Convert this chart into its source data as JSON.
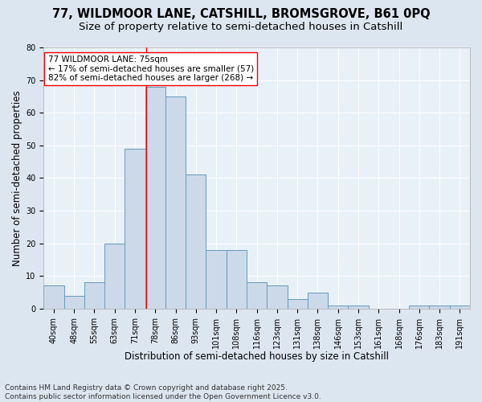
{
  "title_line1": "77, WILDMOOR LANE, CATSHILL, BROMSGROVE, B61 0PQ",
  "title_line2": "Size of property relative to semi-detached houses in Catshill",
  "xlabel": "Distribution of semi-detached houses by size in Catshill",
  "ylabel": "Number of semi-detached properties",
  "categories": [
    "40sqm",
    "48sqm",
    "55sqm",
    "63sqm",
    "71sqm",
    "78sqm",
    "86sqm",
    "93sqm",
    "101sqm",
    "108sqm",
    "116sqm",
    "123sqm",
    "131sqm",
    "138sqm",
    "146sqm",
    "153sqm",
    "161sqm",
    "168sqm",
    "176sqm",
    "183sqm",
    "191sqm"
  ],
  "values": [
    7,
    4,
    8,
    20,
    49,
    68,
    65,
    41,
    18,
    18,
    8,
    7,
    3,
    5,
    1,
    1,
    0,
    0,
    1,
    1,
    1
  ],
  "bar_color": "#ccd9e8",
  "bar_edge_color": "#6699bb",
  "red_line_color": "red",
  "annotation_text": "77 WILDMOOR LANE: 75sqm\n← 17% of semi-detached houses are smaller (57)\n82% of semi-detached houses are larger (268) →",
  "annotation_box_color": "white",
  "annotation_box_edge_color": "red",
  "ylim": [
    0,
    80
  ],
  "yticks": [
    0,
    10,
    20,
    30,
    40,
    50,
    60,
    70,
    80
  ],
  "footer_line1": "Contains HM Land Registry data © Crown copyright and database right 2025.",
  "footer_line2": "Contains public sector information licensed under the Open Government Licence v3.0.",
  "bg_color": "#dce6f0",
  "plot_bg_color": "#e8f0f8",
  "grid_color": "#ffffff",
  "title_fontsize": 10.5,
  "subtitle_fontsize": 9.5,
  "axis_label_fontsize": 8.5,
  "tick_fontsize": 7,
  "annotation_fontsize": 7.5,
  "footer_fontsize": 6.5
}
